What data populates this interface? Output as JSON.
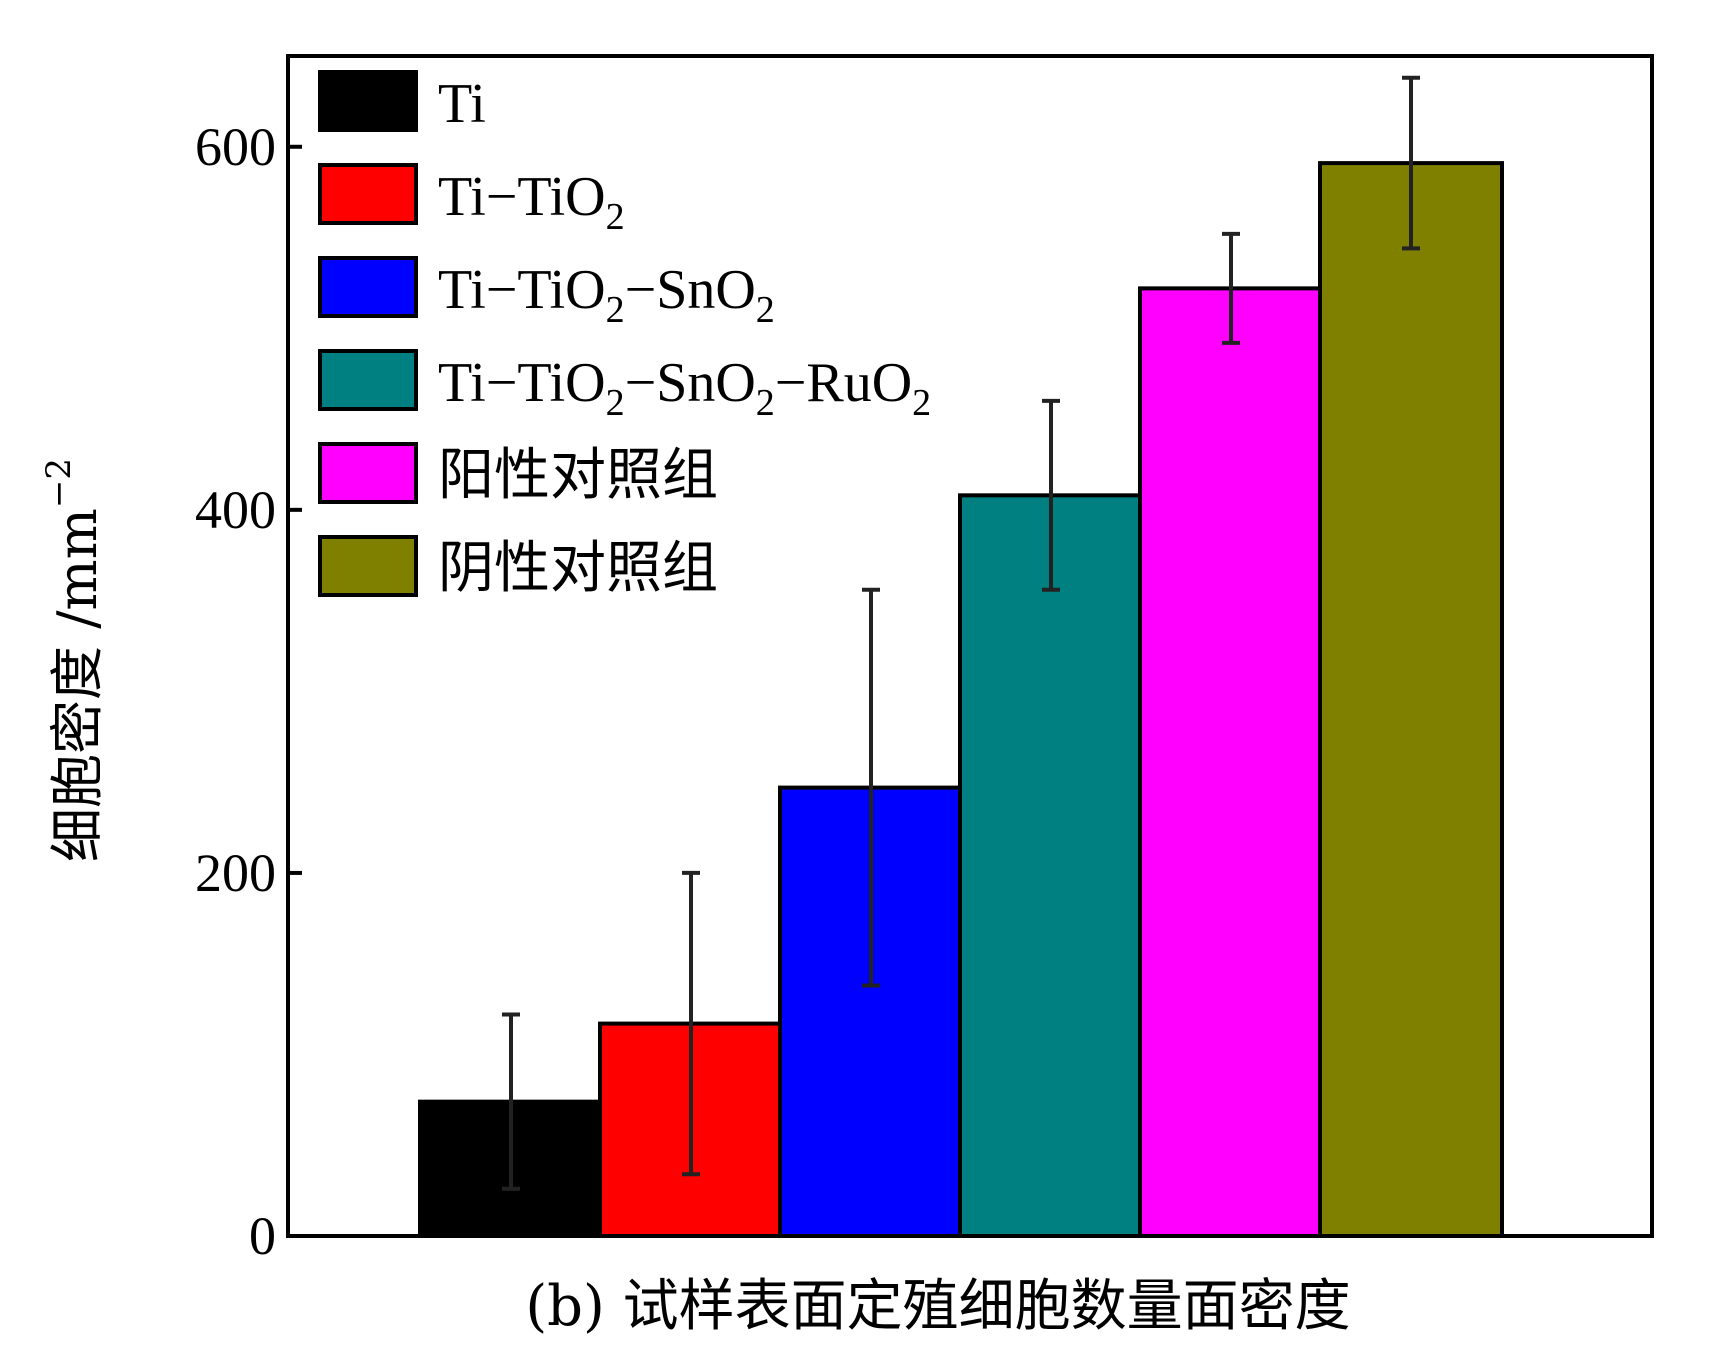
{
  "chart_data": {
    "type": "bar",
    "title": "",
    "caption": "(b) 试样表面定殖细胞数量面密度",
    "xlabel": "",
    "ylabel": "细胞密度 /mm",
    "ylabel_exponent": "−2",
    "ylim": [
      0,
      650
    ],
    "yticks": [
      0,
      200,
      400,
      600
    ],
    "grid": false,
    "legend_position": "top-left",
    "series": [
      {
        "name": "Ti",
        "name_parts": [
          {
            "t": "Ti"
          }
        ],
        "value": 74,
        "error": 48,
        "color": "#000000"
      },
      {
        "name": "Ti−TiO2",
        "name_parts": [
          {
            "t": "Ti−TiO"
          },
          {
            "t": "2",
            "sub": true
          }
        ],
        "value": 117,
        "error": 83,
        "color": "#ff0000"
      },
      {
        "name": "Ti−TiO2−SnO2",
        "name_parts": [
          {
            "t": "Ti−TiO"
          },
          {
            "t": "2",
            "sub": true
          },
          {
            "t": "−SnO"
          },
          {
            "t": "2",
            "sub": true
          }
        ],
        "value": 247,
        "error": 109,
        "color": "#0000ff"
      },
      {
        "name": "Ti−TiO2−SnO2−RuO2",
        "name_parts": [
          {
            "t": "Ti−TiO"
          },
          {
            "t": "2",
            "sub": true
          },
          {
            "t": "−SnO"
          },
          {
            "t": "2",
            "sub": true
          },
          {
            "t": "−RuO"
          },
          {
            "t": "2",
            "sub": true
          }
        ],
        "value": 408,
        "error": 52,
        "color": "#008080"
      },
      {
        "name": "阳性对照组",
        "name_parts": [
          {
            "t": "阳性对照组"
          }
        ],
        "value": 522,
        "error": 30,
        "color": "#ff00ff"
      },
      {
        "name": "阴性对照组",
        "name_parts": [
          {
            "t": "阴性对照组"
          }
        ],
        "value": 591,
        "error": 47,
        "color": "#808000"
      }
    ]
  }
}
